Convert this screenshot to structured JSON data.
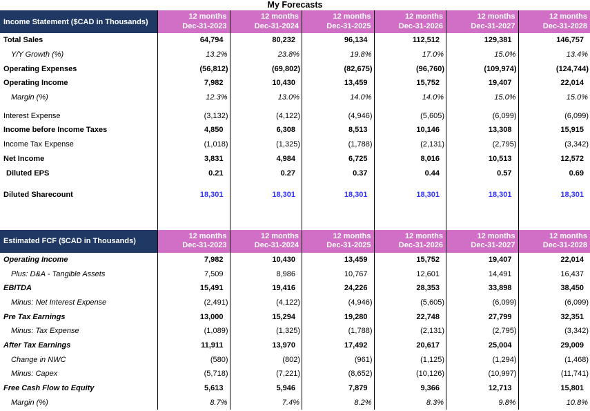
{
  "title": "My Forecasts",
  "colors": {
    "section_header_bg": "#1F3864",
    "period_header_bg": "#D16EC6",
    "sharecount_blue": "#3333FF",
    "gridline": "#000000"
  },
  "sections": [
    {
      "id": "income_statement",
      "title": "Income Statement ($CAD in Thousands)",
      "periods": [
        {
          "top": "12 months",
          "bottom": "Dec-31-2023"
        },
        {
          "top": "12 months",
          "bottom": "Dec-31-2024"
        },
        {
          "top": "12 months",
          "bottom": "Dec-31-2025"
        },
        {
          "top": "12 months",
          "bottom": "Dec-31-2026"
        },
        {
          "top": "12 months",
          "bottom": "Dec-31-2027"
        },
        {
          "top": "12 months",
          "bottom": "Dec-31-2028"
        }
      ],
      "rows": [
        {
          "label": "Total Sales",
          "style": "b",
          "values": [
            "64,794",
            "80,232",
            "96,134",
            "112,512",
            "129,381",
            "146,757"
          ]
        },
        {
          "label": "Y/Y Growth (%)",
          "style": "i",
          "values": [
            "13.2%",
            "23.8%",
            "19.8%",
            "17.0%",
            "15.0%",
            "13.4%"
          ]
        },
        {
          "label": "Operating Expenses",
          "style": "b",
          "values": [
            "(56,812)",
            "(69,802)",
            "(82,675)",
            "(96,760)",
            "(109,974)",
            "(124,744)"
          ]
        },
        {
          "label": "Operating Income",
          "style": "b",
          "values": [
            "7,982",
            "10,430",
            "13,459",
            "15,752",
            "19,407",
            "22,014"
          ]
        },
        {
          "label": "Margin (%)",
          "style": "i",
          "values": [
            "12.3%",
            "13.0%",
            "14.0%",
            "14.0%",
            "15.0%",
            "15.0%"
          ]
        },
        {
          "label": "Interest Expense",
          "style": "p",
          "values": [
            "(3,132)",
            "(4,122)",
            "(4,946)",
            "(5,605)",
            "(6,099)",
            "(6,099)"
          ]
        },
        {
          "label": "Income before Income Taxes",
          "style": "b",
          "values": [
            "4,850",
            "6,308",
            "8,513",
            "10,146",
            "13,308",
            "15,915"
          ]
        },
        {
          "label": "Income Tax Expense",
          "style": "p",
          "values": [
            "(1,018)",
            "(1,325)",
            "(1,788)",
            "(2,131)",
            "(2,795)",
            "(3,342)"
          ]
        },
        {
          "label": "Net Income",
          "style": "b",
          "values": [
            "3,831",
            "4,984",
            "6,725",
            "8,016",
            "10,513",
            "12,572"
          ]
        },
        {
          "label": "Diluted EPS",
          "style": "b-ind",
          "values": [
            "0.21",
            "0.27",
            "0.37",
            "0.44",
            "0.57",
            "0.69"
          ]
        },
        {
          "label": "Diluted Sharecount",
          "style": "b",
          "value_color": "blue",
          "values": [
            "18,301",
            "18,301",
            "18,301",
            "18,301",
            "18,301",
            "18,301"
          ]
        }
      ]
    },
    {
      "id": "estimated_fcf",
      "title": "Estimated FCF ($CAD in Thousands)",
      "periods": [
        {
          "top": "12 months",
          "bottom": "Dec-31-2023"
        },
        {
          "top": "12 months",
          "bottom": "Dec-31-2024"
        },
        {
          "top": "12 months",
          "bottom": "Dec-31-2025"
        },
        {
          "top": "12 months",
          "bottom": "Dec-31-2026"
        },
        {
          "top": "12 months",
          "bottom": "Dec-31-2027"
        },
        {
          "top": "12 months",
          "bottom": "Dec-31-2028"
        }
      ],
      "rows": [
        {
          "label": "Operating Income",
          "style": "bi",
          "values": [
            "7,982",
            "10,430",
            "13,459",
            "15,752",
            "19,407",
            "22,014"
          ]
        },
        {
          "label": "Plus: D&A - Tangible Assets",
          "style": "il",
          "values": [
            "7,509",
            "8,986",
            "10,767",
            "12,601",
            "14,491",
            "16,437"
          ]
        },
        {
          "label": "EBITDA",
          "style": "bi",
          "values": [
            "15,491",
            "19,416",
            "24,226",
            "28,353",
            "33,898",
            "38,450"
          ]
        },
        {
          "label": "Minus: Net Interest Expense",
          "style": "il",
          "values": [
            "(2,491)",
            "(4,122)",
            "(4,946)",
            "(5,605)",
            "(6,099)",
            "(6,099)"
          ]
        },
        {
          "label": "Pre Tax Earnings",
          "style": "bi",
          "values": [
            "13,000",
            "15,294",
            "19,280",
            "22,748",
            "27,799",
            "32,351"
          ]
        },
        {
          "label": "Minus: Tax Expense",
          "style": "il",
          "values": [
            "(1,089)",
            "(1,325)",
            "(1,788)",
            "(2,131)",
            "(2,795)",
            "(3,342)"
          ]
        },
        {
          "label": "After Tax Earnings",
          "style": "bi",
          "values": [
            "11,911",
            "13,970",
            "17,492",
            "20,617",
            "25,004",
            "29,009"
          ]
        },
        {
          "label": "Change in NWC",
          "style": "il",
          "values": [
            "(580)",
            "(802)",
            "(961)",
            "(1,125)",
            "(1,294)",
            "(1,468)"
          ]
        },
        {
          "label": "Minus: Capex",
          "style": "il",
          "values": [
            "(5,718)",
            "(7,221)",
            "(8,652)",
            "(10,126)",
            "(10,997)",
            "(11,741)"
          ]
        },
        {
          "label": "Free Cash Flow to Equity",
          "style": "bi",
          "values": [
            "5,613",
            "5,946",
            "7,879",
            "9,366",
            "12,713",
            "15,801"
          ]
        },
        {
          "label": "Margin (%)",
          "style": "i",
          "values": [
            "8.7%",
            "7.4%",
            "8.2%",
            "8.3%",
            "9.8%",
            "10.8%"
          ]
        }
      ]
    }
  ]
}
